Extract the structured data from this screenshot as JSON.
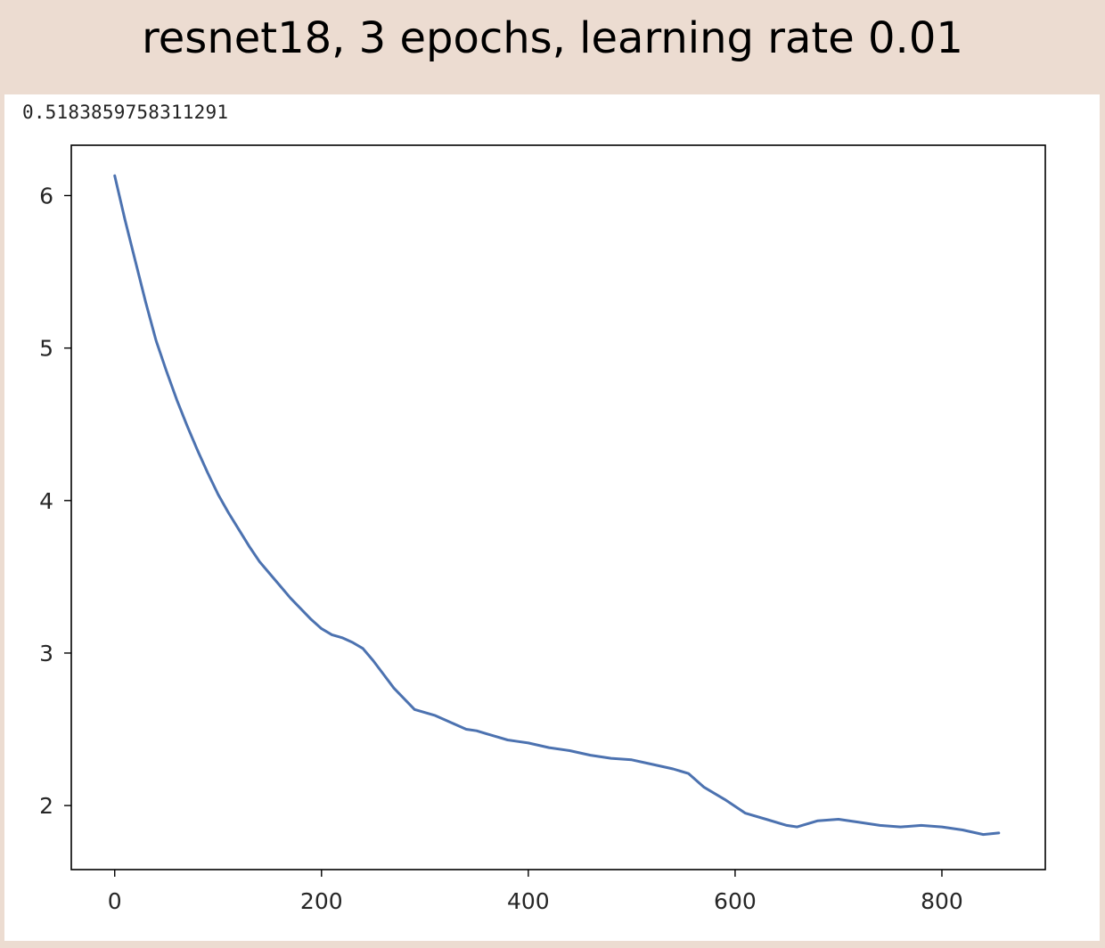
{
  "title": "resnet18, 3 epochs, learning rate 0.01",
  "output_value": "0.5183859758311291",
  "colors": {
    "background": "#ecdcd1",
    "panel": "#ffffff",
    "line": "#4c72b0"
  },
  "chart_data": {
    "type": "line",
    "title": "",
    "xlabel": "",
    "ylabel": "",
    "xlim": [
      -42,
      900
    ],
    "ylim": [
      1.58,
      6.33
    ],
    "xticks": [
      0,
      200,
      400,
      600,
      800
    ],
    "yticks": [
      2,
      3,
      4,
      5,
      6
    ],
    "grid": false,
    "series": [
      {
        "x": [
          0,
          10,
          20,
          30,
          40,
          50,
          60,
          70,
          80,
          90,
          100,
          110,
          120,
          130,
          140,
          150,
          160,
          170,
          180,
          190,
          200,
          210,
          220,
          230,
          240,
          250,
          260,
          270,
          280,
          290,
          300,
          310,
          320,
          330,
          340,
          350,
          360,
          370,
          380,
          390,
          400,
          420,
          440,
          460,
          480,
          500,
          520,
          540,
          555,
          570,
          590,
          610,
          630,
          650,
          660,
          680,
          700,
          720,
          740,
          760,
          780,
          800,
          820,
          840,
          855
        ],
        "y": [
          6.13,
          5.84,
          5.57,
          5.3,
          5.05,
          4.85,
          4.66,
          4.49,
          4.33,
          4.18,
          4.04,
          3.92,
          3.81,
          3.7,
          3.6,
          3.52,
          3.44,
          3.36,
          3.29,
          3.22,
          3.16,
          3.12,
          3.1,
          3.07,
          3.03,
          2.95,
          2.86,
          2.77,
          2.7,
          2.63,
          2.61,
          2.59,
          2.56,
          2.53,
          2.5,
          2.49,
          2.47,
          2.45,
          2.43,
          2.42,
          2.41,
          2.38,
          2.36,
          2.33,
          2.31,
          2.3,
          2.27,
          2.24,
          2.21,
          2.12,
          2.04,
          1.95,
          1.91,
          1.87,
          1.86,
          1.9,
          1.91,
          1.89,
          1.87,
          1.86,
          1.87,
          1.86,
          1.84,
          1.81,
          1.82
        ]
      }
    ]
  }
}
